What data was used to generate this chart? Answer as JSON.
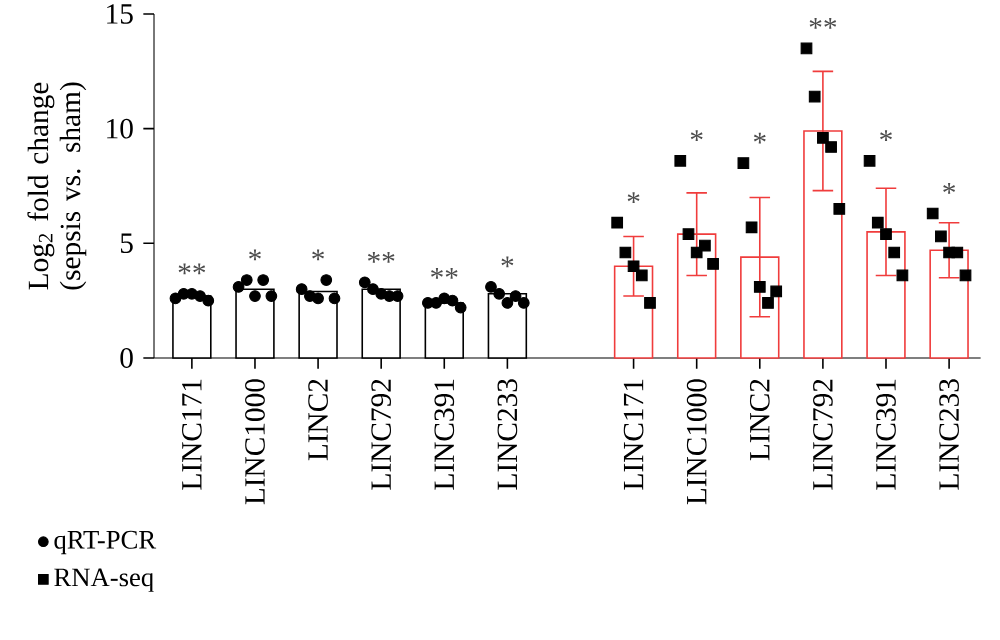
{
  "chart_data": {
    "type": "bar",
    "ylabel": "Log$_{2}$ fold change (sepsis vs. sham)",
    "categories": [
      "LINC171",
      "LINC1000",
      "LINC2",
      "LINC792",
      "LINC391",
      "LINC233",
      null,
      "LINC171",
      "LINC1000",
      "LINC2",
      "LINC792",
      "LINC391",
      "LINC233"
    ],
    "ylim": [
      0,
      15
    ],
    "yticks": [
      0,
      5,
      10,
      15
    ],
    "legend": "bottom left",
    "series": [
      {
        "color": "#000000",
        "values": [
          2.7,
          3.0,
          2.9,
          3.0,
          2.4,
          2.8,
          null,
          null,
          null,
          null,
          null,
          null,
          null
        ]
      },
      {
        "color": "#f03c3c",
        "values": [
          null,
          null,
          null,
          null,
          null,
          null,
          null,
          4.0,
          5.4,
          4.4,
          9.9,
          5.5,
          4.7
        ],
        "errors": [
          null,
          null,
          null,
          null,
          null,
          null,
          null,
          1.3,
          1.8,
          2.6,
          2.6,
          1.9,
          1.2
        ]
      },
      {
        "type": "scatter",
        "name": "qRT-PCR",
        "marker": "circle",
        "color": "#000000",
        "values": [
          2.6,
          3.1,
          3.0,
          3.3,
          2.4,
          3.1,
          null,
          null,
          null,
          null,
          null,
          null,
          null
        ]
      },
      {
        "type": "scatter",
        "marker": "circle",
        "color": "#000000",
        "values": [
          2.8,
          3.4,
          2.7,
          3.0,
          2.4,
          2.8,
          null,
          null,
          null,
          null,
          null,
          null,
          null
        ]
      },
      {
        "type": "scatter",
        "marker": "circle",
        "color": "#000000",
        "values": [
          2.8,
          2.7,
          2.6,
          2.8,
          2.6,
          2.4,
          null,
          null,
          null,
          null,
          null,
          null,
          null
        ]
      },
      {
        "type": "scatter",
        "marker": "circle",
        "color": "#000000",
        "values": [
          2.7,
          3.4,
          3.4,
          2.7,
          2.5,
          2.7,
          null,
          null,
          null,
          null,
          null,
          null,
          null
        ]
      },
      {
        "type": "scatter",
        "marker": "circle",
        "color": "#000000",
        "values": [
          2.5,
          2.7,
          2.6,
          2.7,
          2.2,
          2.4,
          null,
          null,
          null,
          null,
          null,
          null,
          null
        ]
      },
      {
        "type": "scatter",
        "name": "RNA-seq",
        "marker": "square",
        "color": "#000000",
        "values": [
          null,
          null,
          null,
          null,
          null,
          null,
          null,
          5.9,
          8.6,
          8.5,
          13.5,
          8.6,
          6.3
        ]
      },
      {
        "type": "scatter",
        "marker": "square",
        "color": "#000000",
        "values": [
          null,
          null,
          null,
          null,
          null,
          null,
          null,
          4.6,
          5.4,
          5.7,
          11.4,
          5.9,
          5.3
        ]
      },
      {
        "type": "scatter",
        "marker": "square",
        "color": "#000000",
        "values": [
          null,
          null,
          null,
          null,
          null,
          null,
          null,
          4.0,
          4.6,
          3.1,
          9.6,
          5.4,
          4.6
        ]
      },
      {
        "type": "scatter",
        "marker": "square",
        "color": "#000000",
        "values": [
          null,
          null,
          null,
          null,
          null,
          null,
          null,
          3.6,
          4.9,
          2.4,
          9.2,
          4.6,
          4.6
        ]
      },
      {
        "type": "scatter",
        "marker": "square",
        "color": "#000000",
        "values": [
          null,
          null,
          null,
          null,
          null,
          null,
          null,
          2.4,
          4.1,
          2.9,
          6.5,
          3.6,
          3.6
        ]
      }
    ],
    "annotations": [
      "**",
      "*",
      "*",
      "**",
      "**",
      "*",
      "*",
      "*",
      "*",
      "**",
      "*",
      "*"
    ]
  }
}
